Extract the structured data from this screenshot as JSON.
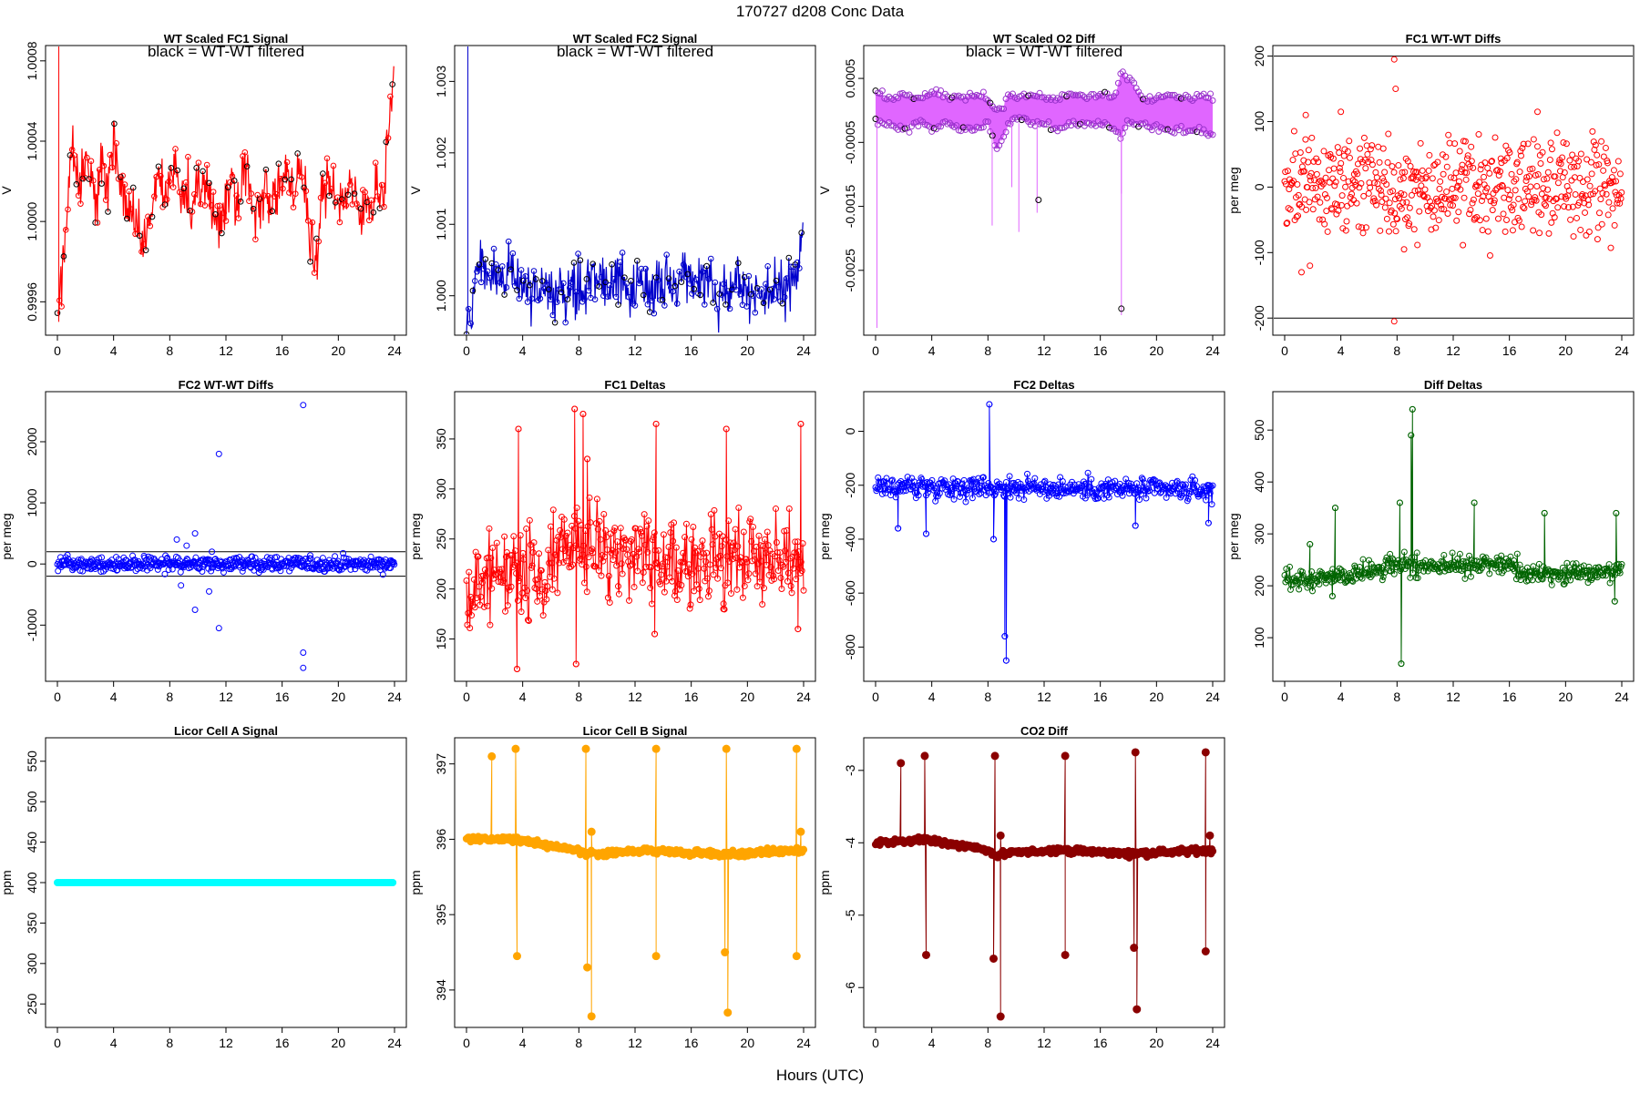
{
  "figure": {
    "title": "170727   d208   Conc Data",
    "xlabel": "Hours (UTC)"
  },
  "chart_data": [
    {
      "id": "p1",
      "type": "line",
      "title": "WT Scaled FC1 Signal",
      "annotation": "black = WT-WT filtered",
      "ylabel": "V",
      "color": "#ff0000",
      "xlim": [
        0,
        24
      ],
      "ylim": [
        0.99947,
        1.00084
      ],
      "yticks": [
        0.9996,
        1.0,
        1.0004,
        1.0008
      ],
      "yticklabels": [
        "0.9996",
        "1.0000",
        "1.0004",
        "1.0008"
      ],
      "xticks": [
        0,
        4,
        8,
        12,
        16,
        20,
        24
      ],
      "xticklabels": [
        "0",
        "4",
        "8",
        "12",
        "16",
        "20",
        "24"
      ],
      "x": [
        0,
        0.2,
        0.5,
        0.8,
        1,
        1.3,
        1.6,
        2,
        2.4,
        2.8,
        3.2,
        3.6,
        4,
        4.4,
        4.8,
        5.2,
        5.6,
        6,
        6.4,
        6.8,
        7.2,
        7.6,
        8,
        8.4,
        8.8,
        9.2,
        9.6,
        10,
        10.4,
        10.8,
        11.2,
        11.6,
        12,
        12.4,
        12.8,
        13.2,
        13.6,
        14,
        14.4,
        14.8,
        15.2,
        15.6,
        16,
        16.4,
        16.8,
        17.2,
        17.6,
        18,
        18.4,
        18.8,
        19.2,
        19.6,
        20,
        20.4,
        20.8,
        21.2,
        21.6,
        22,
        22.4,
        22.8,
        23.2,
        23.6,
        24
      ],
      "y": [
        0.9995,
        0.99965,
        0.99985,
        1.0002,
        1.0004,
        1.0003,
        1.0002,
        1.0003,
        1.0002,
        1.0001,
        1.0003,
        1.0002,
        1.0004,
        1.0002,
        1.0001,
        1.00005,
        1.0,
        0.9999,
        0.99995,
        1.0001,
        1.0002,
        1.0001,
        1.0002,
        1.0003,
        1.0001,
        1.0002,
        1.0,
        1.00015,
        1.0002,
        1.0001,
        1.00005,
        1.0,
        1.0001,
        1.0002,
        1.0001,
        1.0003,
        1.0002,
        1.0,
        1.0001,
        1.0002,
        1.0001,
        1.00015,
        1.0002,
        1.0002,
        1.0001,
        1.0003,
        1.0002,
        0.9999,
        0.99975,
        1.0001,
        1.0002,
        1.0002,
        1.0001,
        1.0001,
        1.0002,
        1.0001,
        1.0,
        1.0001,
        1.0001,
        1.0002,
        1.0001,
        1.0005,
        1.0008
      ]
    },
    {
      "id": "p2",
      "type": "line",
      "title": "WT Scaled FC2 Signal",
      "annotation": "black = WT-WT filtered",
      "ylabel": "V",
      "color": "#0000cc",
      "xlim": [
        0,
        24
      ],
      "ylim": [
        0.99955,
        1.0034
      ],
      "yticks": [
        1.0,
        1.001,
        1.002,
        1.003
      ],
      "yticklabels": [
        "1.000",
        "1.001",
        "1.002",
        "1.003"
      ],
      "xticks": [
        0,
        4,
        8,
        12,
        16,
        20,
        24
      ],
      "xticklabels": [
        "0",
        "4",
        "8",
        "12",
        "16",
        "20",
        "24"
      ],
      "x": [
        0,
        0.3,
        0.7,
        1,
        1.5,
        2,
        2.5,
        3,
        3.5,
        4,
        4.5,
        5,
        5.5,
        6,
        6.5,
        7,
        7.5,
        8,
        8.5,
        9,
        9.5,
        10,
        10.5,
        11,
        11.5,
        12,
        12.5,
        13,
        13.5,
        14,
        14.5,
        15,
        15.5,
        16,
        16.5,
        17,
        17.3,
        17.6,
        18,
        18.4,
        18.8,
        19.2,
        19.6,
        20,
        20.5,
        21,
        21.5,
        22,
        22.5,
        23,
        23.5,
        24
      ],
      "y": [
        0.9996,
        0.99975,
        1.0001,
        1.0004,
        1.0004,
        1.0003,
        1.0002,
        1.0003,
        1.0002,
        1.0002,
        1.0001,
        1.00005,
        1.0001,
        1.00005,
        1.0001,
        1.0001,
        1.00015,
        1.0001,
        1.0002,
        1.0003,
        1.0002,
        1.0001,
        1.0002,
        1.0003,
        1.0002,
        1.0001,
        1.0,
        1.0001,
        1.0002,
        1.0001,
        1.0001,
        1.0002,
        1.0002,
        1.0001,
        1.0002,
        1.0003,
        1.0004,
        0.9999,
        0.99985,
        1.00005,
        1.0001,
        1.0001,
        1.0001,
        1.0001,
        1.0001,
        1.0,
        1.00005,
        1.0001,
        1.0001,
        1.0002,
        1.0003,
        1.0008
      ]
    },
    {
      "id": "p3",
      "type": "line",
      "title": "WT Scaled O2 Diff",
      "annotation": "black = WT-WT filtered",
      "ylabel": "V",
      "color": "#cc33ff",
      "fill": "#e066ff",
      "xlim": [
        0,
        24
      ],
      "ylim": [
        -0.0034,
        0.0009
      ],
      "yticks": [
        0.0005,
        -0.0005,
        -0.0015,
        -0.0025
      ],
      "yticklabels": [
        "0.0005",
        "-0.0005",
        "-0.0015",
        "-0.0025"
      ],
      "xticks": [
        0,
        4,
        8,
        12,
        16,
        20,
        24
      ],
      "xticklabels": [
        "0",
        "4",
        "8",
        "12",
        "16",
        "20",
        "24"
      ],
      "x": [
        0,
        1,
        2,
        3,
        4,
        5,
        6,
        7,
        8,
        8.5,
        9,
        9.5,
        10,
        11,
        12,
        13,
        14,
        15,
        16,
        17,
        17.5,
        18,
        19,
        20,
        21,
        22,
        23,
        24
      ],
      "upper": [
        0.0003,
        0.0002,
        0.00025,
        0.0002,
        0.0003,
        0.0002,
        0.0002,
        0.00025,
        0.0002,
        0.0,
        0.0,
        0.0003,
        0.0002,
        0.00025,
        0.0002,
        0.0002,
        0.00025,
        0.0002,
        0.00025,
        0.0002,
        0.0006,
        0.0005,
        0.0002,
        0.0002,
        0.00025,
        0.0002,
        0.0002,
        0.0002
      ],
      "lower": [
        -0.0002,
        -0.0002,
        -0.0003,
        -0.0002,
        -0.0003,
        -0.0002,
        -0.0003,
        -0.0003,
        -0.0002,
        -0.0006,
        -0.0005,
        -0.0002,
        -0.0001,
        -0.0002,
        -0.0002,
        -0.0003,
        -0.0002,
        -0.0002,
        -0.0002,
        -0.0003,
        -0.0004,
        -0.0002,
        -0.0002,
        -0.0003,
        -0.0003,
        -0.0003,
        -0.0003,
        -0.0004
      ]
    },
    {
      "id": "p4",
      "type": "scatter",
      "title": "FC1 WT-WT Diffs",
      "ylabel": "per meg",
      "color": "#ff0000",
      "xlim": [
        0,
        24
      ],
      "ylim": [
        -215,
        205
      ],
      "yticks": [
        -200,
        -100,
        0,
        100,
        200
      ],
      "yticklabels": [
        "-200",
        "-100",
        "0",
        "100",
        "200"
      ],
      "xticks": [
        0,
        4,
        8,
        12,
        16,
        20,
        24
      ],
      "xticklabels": [
        "0",
        "4",
        "8",
        "12",
        "16",
        "20",
        "24"
      ],
      "hlines": [
        200,
        -200
      ],
      "spread": 38,
      "outliers": [
        [
          7.8,
          195
        ],
        [
          7.9,
          150
        ],
        [
          7.8,
          -205
        ],
        [
          4,
          115
        ],
        [
          18,
          115
        ],
        [
          1.5,
          110
        ],
        [
          1.2,
          -130
        ],
        [
          1.8,
          -120
        ],
        [
          8.5,
          -95
        ]
      ]
    },
    {
      "id": "p5",
      "type": "scatter",
      "title": "FC2 WT-WT Diffs",
      "ylabel": "per meg",
      "color": "#0000ff",
      "xlim": [
        0,
        24
      ],
      "ylim": [
        -1800,
        2700
      ],
      "yticks": [
        -1000,
        0,
        1000,
        2000
      ],
      "yticklabels": [
        "-1000",
        "0",
        "1000",
        "2000"
      ],
      "xticks": [
        0,
        4,
        8,
        12,
        16,
        20,
        24
      ],
      "xticklabels": [
        "0",
        "4",
        "8",
        "12",
        "16",
        "20",
        "24"
      ],
      "hlines": [
        200,
        -200
      ],
      "spread": 60,
      "outliers": [
        [
          17.5,
          2600
        ],
        [
          11.5,
          1800
        ],
        [
          9.8,
          500
        ],
        [
          8.5,
          400
        ],
        [
          9.2,
          300
        ],
        [
          11,
          200
        ],
        [
          8.8,
          -350
        ],
        [
          9.8,
          -750
        ],
        [
          11.5,
          -1050
        ],
        [
          17.5,
          -1450
        ],
        [
          17.5,
          -1700
        ],
        [
          10.8,
          -450
        ]
      ]
    },
    {
      "id": "p6",
      "type": "line",
      "title": "FC1 Deltas",
      "ylabel": "per meg",
      "color": "#ff0000",
      "xlim": [
        0,
        24
      ],
      "ylim": [
        115,
        390
      ],
      "yticks": [
        150,
        200,
        250,
        300,
        350
      ],
      "yticklabels": [
        "150",
        "200",
        "250",
        "300",
        "350"
      ],
      "xticks": [
        0,
        4,
        8,
        12,
        16,
        20,
        24
      ],
      "xticklabels": [
        "0",
        "4",
        "8",
        "12",
        "16",
        "20",
        "24"
      ],
      "baseline": [
        [
          0,
          210
        ],
        [
          5.6,
          215
        ],
        [
          6,
          240
        ],
        [
          8,
          245
        ],
        [
          9,
          235
        ],
        [
          24,
          230
        ]
      ],
      "noise": 22,
      "spikes": [
        [
          3.7,
          360
        ],
        [
          3.6,
          120
        ],
        [
          7.7,
          380
        ],
        [
          7.8,
          125
        ],
        [
          8.3,
          375
        ],
        [
          8.6,
          330
        ],
        [
          13.5,
          365
        ],
        [
          13.4,
          155
        ],
        [
          18.5,
          360
        ],
        [
          18.3,
          180
        ],
        [
          23.8,
          365
        ],
        [
          23.6,
          160
        ]
      ]
    },
    {
      "id": "p7",
      "type": "line",
      "title": "FC2 Deltas",
      "ylabel": "per meg",
      "color": "#0000ff",
      "xlim": [
        0,
        24
      ],
      "ylim": [
        -900,
        120
      ],
      "yticks": [
        0,
        -200,
        -400,
        -600,
        -800
      ],
      "yticklabels": [
        "0",
        "-200",
        "-400",
        "-600",
        "-800"
      ],
      "xticks": [
        0,
        4,
        8,
        12,
        16,
        20,
        24
      ],
      "xticklabels": [
        "0",
        "4",
        "8",
        "12",
        "16",
        "20",
        "24"
      ],
      "baseline": [
        [
          0,
          -200
        ],
        [
          24,
          -220
        ]
      ],
      "noise": 20,
      "spikes": [
        [
          8.1,
          100
        ],
        [
          8.4,
          -400
        ],
        [
          9.3,
          -850
        ],
        [
          9.2,
          -760
        ],
        [
          3.6,
          -380
        ],
        [
          1.6,
          -360
        ],
        [
          18.5,
          -350
        ],
        [
          23.7,
          -340
        ]
      ]
    },
    {
      "id": "p8",
      "type": "line",
      "title": "Diff Deltas",
      "ylabel": "per meg",
      "color": "#006400",
      "xlim": [
        0,
        24
      ],
      "ylim": [
        30,
        560
      ],
      "yticks": [
        100,
        200,
        300,
        400,
        500
      ],
      "yticklabels": [
        "100",
        "200",
        "300",
        "400",
        "500"
      ],
      "xticks": [
        0,
        4,
        8,
        12,
        16,
        20,
        24
      ],
      "xticklabels": [
        "0",
        "4",
        "8",
        "12",
        "16",
        "20",
        "24"
      ],
      "baseline": [
        [
          0,
          210
        ],
        [
          5,
          220
        ],
        [
          8,
          240
        ],
        [
          16,
          240
        ],
        [
          17,
          225
        ],
        [
          24,
          225
        ]
      ],
      "noise": 10,
      "spikes": [
        [
          9.1,
          540
        ],
        [
          9.0,
          490
        ],
        [
          8.3,
          50
        ],
        [
          8.2,
          360
        ],
        [
          3.6,
          350
        ],
        [
          1.8,
          280
        ],
        [
          13.5,
          360
        ],
        [
          18.5,
          340
        ],
        [
          23.6,
          340
        ],
        [
          23.5,
          170
        ],
        [
          3.4,
          180
        ]
      ]
    },
    {
      "id": "p9",
      "type": "flat",
      "title": "Licor Cell A Signal",
      "ylabel": "ppm",
      "color": "#00ffff",
      "xlim": [
        0,
        24
      ],
      "ylim": [
        230,
        570
      ],
      "yticks": [
        250,
        300,
        350,
        400,
        450,
        500,
        550
      ],
      "yticklabels": [
        "250",
        "300",
        "350",
        "400",
        "450",
        "500",
        "550"
      ],
      "xticks": [
        0,
        4,
        8,
        12,
        16,
        20,
        24
      ],
      "xticklabels": [
        "0",
        "4",
        "8",
        "12",
        "16",
        "20",
        "24"
      ],
      "value": 400
    },
    {
      "id": "p10",
      "type": "line",
      "title": "Licor Cell B Signal",
      "ylabel": "ppm",
      "color": "#ffa500",
      "xlim": [
        0,
        24
      ],
      "ylim": [
        393.6,
        397.25
      ],
      "yticks": [
        394,
        395,
        396,
        397
      ],
      "yticklabels": [
        "394",
        "395",
        "396",
        "397"
      ],
      "xticks": [
        0,
        4,
        8,
        12,
        16,
        20,
        24
      ],
      "xticklabels": [
        "0",
        "4",
        "8",
        "12",
        "16",
        "20",
        "24"
      ],
      "baseline": [
        [
          0,
          396.0
        ],
        [
          3.5,
          396.0
        ],
        [
          5,
          395.95
        ],
        [
          8,
          395.85
        ],
        [
          8.6,
          395.8
        ],
        [
          9,
          395.8
        ],
        [
          13,
          395.85
        ],
        [
          18,
          395.8
        ],
        [
          24,
          395.85
        ]
      ],
      "noise": 0.02,
      "spikes": [
        [
          3.5,
          397.2
        ],
        [
          3.6,
          394.45
        ],
        [
          8.5,
          397.2
        ],
        [
          8.6,
          394.3
        ],
        [
          8.9,
          393.65
        ],
        [
          8.9,
          396.1
        ],
        [
          13.5,
          397.2
        ],
        [
          13.5,
          394.45
        ],
        [
          18.5,
          397.2
        ],
        [
          18.6,
          393.7
        ],
        [
          18.4,
          394.5
        ],
        [
          23.5,
          397.2
        ],
        [
          23.5,
          394.45
        ],
        [
          23.8,
          396.1
        ],
        [
          1.8,
          397.1
        ]
      ]
    },
    {
      "id": "p11",
      "type": "line",
      "title": "CO2 Diff",
      "ylabel": "ppm",
      "color": "#8b0000",
      "xlim": [
        0,
        24
      ],
      "ylim": [
        -6.45,
        -2.65
      ],
      "yticks": [
        -3,
        -4,
        -5,
        -6
      ],
      "yticklabels": [
        "-3",
        "-4",
        "-5",
        "-6"
      ],
      "xticks": [
        0,
        4,
        8,
        12,
        16,
        20,
        24
      ],
      "xticklabels": [
        "0",
        "4",
        "8",
        "12",
        "16",
        "20",
        "24"
      ],
      "baseline": [
        [
          0,
          -4.0
        ],
        [
          3.5,
          -3.95
        ],
        [
          5,
          -4.0
        ],
        [
          8,
          -4.1
        ],
        [
          8.6,
          -4.2
        ],
        [
          9,
          -4.15
        ],
        [
          13,
          -4.1
        ],
        [
          18,
          -4.15
        ],
        [
          24,
          -4.1
        ]
      ],
      "noise": 0.02,
      "spikes": [
        [
          3.5,
          -2.8
        ],
        [
          3.6,
          -5.55
        ],
        [
          8.5,
          -2.8
        ],
        [
          8.4,
          -5.6
        ],
        [
          8.9,
          -6.4
        ],
        [
          8.9,
          -3.9
        ],
        [
          13.5,
          -2.8
        ],
        [
          13.5,
          -5.55
        ],
        [
          18.5,
          -2.75
        ],
        [
          18.6,
          -6.3
        ],
        [
          18.4,
          -5.45
        ],
        [
          23.5,
          -2.75
        ],
        [
          23.5,
          -5.5
        ],
        [
          23.8,
          -3.9
        ],
        [
          1.8,
          -2.9
        ]
      ]
    }
  ]
}
